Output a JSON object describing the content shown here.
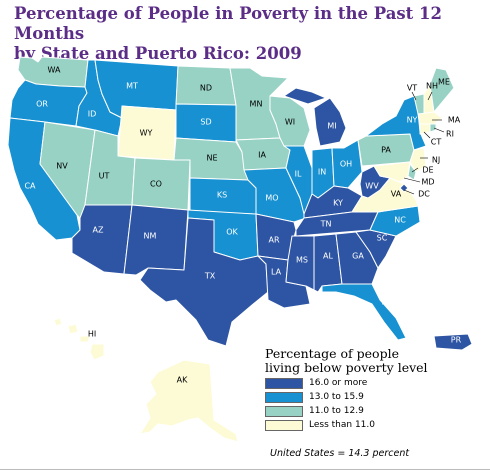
{
  "title": {
    "line1": "Percentage of People in Poverty in the Past 12 Months",
    "line2": "by State and Puerto Rico: 2009"
  },
  "colors": {
    "c1": "#2e55a3",
    "c2": "#1791d1",
    "c3": "#98d2c4",
    "c4": "#fdfbd6",
    "outline": "#ffffff"
  },
  "legend": {
    "title_line1": "Percentage of people",
    "title_line2": "living below poverty level",
    "items": [
      {
        "label": "16.0 or more",
        "cls": "c1"
      },
      {
        "label": "13.0 to 15.9",
        "cls": "c2"
      },
      {
        "label": "11.0 to 12.9",
        "cls": "c3"
      },
      {
        "label": "Less than 11.0",
        "cls": "c4"
      }
    ]
  },
  "note": "United States = 14.3 percent",
  "states": {
    "WA": "c3",
    "OR": "c2",
    "CA": "c2",
    "NV": "c3",
    "ID": "c2",
    "MT": "c2",
    "WY": "c4",
    "UT": "c3",
    "CO": "c3",
    "AZ": "c1",
    "NM": "c1",
    "ND": "c3",
    "SD": "c2",
    "NE": "c3",
    "KS": "c2",
    "OK": "c2",
    "TX": "c1",
    "MN": "c3",
    "IA": "c3",
    "MO": "c2",
    "AR": "c1",
    "LA": "c1",
    "WI": "c3",
    "IL": "c2",
    "MI": "c1",
    "IN": "c2",
    "OH": "c2",
    "KY": "c1",
    "TN": "c1",
    "MS": "c1",
    "AL": "c1",
    "GA": "c1",
    "FL": "c2",
    "SC": "c1",
    "NC": "c2",
    "VA": "c4",
    "WV": "c1",
    "PA": "c3",
    "NY": "c2",
    "VT": "c3",
    "NH": "c4",
    "ME": "c3",
    "MA": "c4",
    "RI": "c3",
    "CT": "c4",
    "NJ": "c4",
    "DE": "c3",
    "MD": "c4",
    "DC": "c1",
    "AK": "c4",
    "HI": "c4",
    "PR": "c1"
  },
  "labels": {
    "WA": "WA",
    "OR": "OR",
    "CA": "CA",
    "NV": "NV",
    "ID": "ID",
    "MT": "MT",
    "WY": "WY",
    "UT": "UT",
    "CO": "CO",
    "AZ": "AZ",
    "NM": "NM",
    "ND": "ND",
    "SD": "SD",
    "NE": "NE",
    "KS": "KS",
    "OK": "OK",
    "TX": "TX",
    "MN": "MN",
    "IA": "IA",
    "MO": "MO",
    "AR": "AR",
    "LA": "LA",
    "WI": "WI",
    "IL": "IL",
    "MI": "MI",
    "IN": "IN",
    "OH": "OH",
    "KY": "KY",
    "TN": "TN",
    "MS": "MS",
    "AL": "AL",
    "GA": "GA",
    "FL": "FL",
    "SC": "SC",
    "NC": "NC",
    "VA": "VA",
    "WV": "WV",
    "PA": "PA",
    "NY": "NY",
    "VT": "VT",
    "NH": "NH",
    "ME": "ME",
    "MA": "MA",
    "RI": "RI",
    "CT": "CT",
    "NJ": "NJ",
    "DE": "DE",
    "MD": "MD",
    "DC": "DC",
    "AK": "AK",
    "HI": "HI",
    "PR": "PR"
  }
}
